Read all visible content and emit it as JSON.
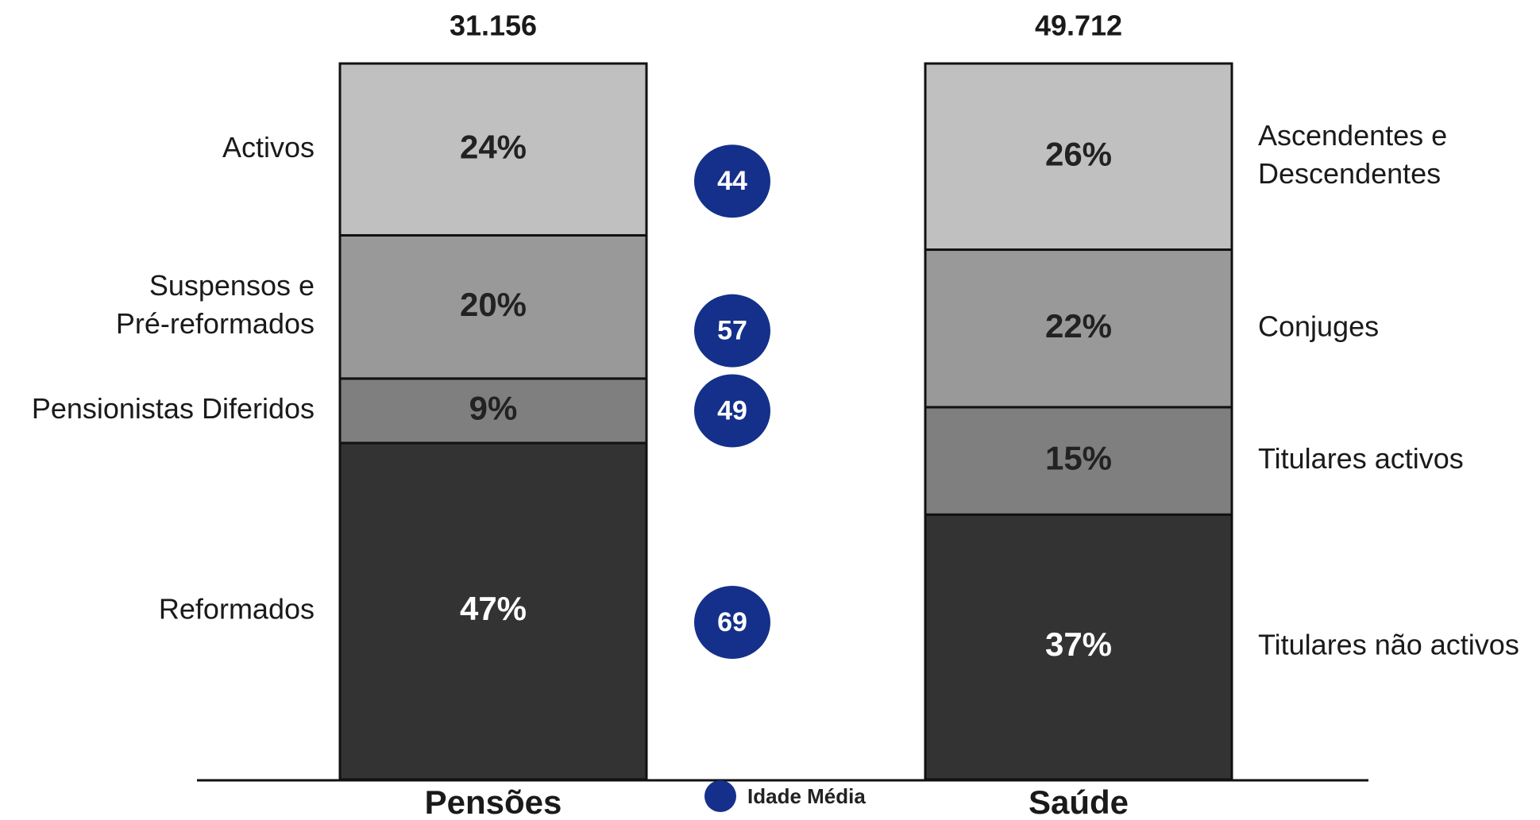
{
  "chart_data": {
    "type": "bar",
    "stacked": true,
    "percent": true,
    "categories": [
      "Pensões",
      "Saúde"
    ],
    "totals": [
      "31.156",
      "49.712"
    ],
    "stacks": [
      {
        "category": "Pensões",
        "segments": [
          {
            "label": "Reformados",
            "value": 47,
            "value_label": "47%",
            "color": "#333333",
            "text_color": "#ffffff"
          },
          {
            "label": "Pensionistas Diferidos",
            "value": 9,
            "value_label": "9%",
            "color": "#7f7f7f",
            "text_color": "#222222"
          },
          {
            "label": "Suspensos e Pré-reformados",
            "label_lines": [
              "Suspensos e",
              "Pré-reformados"
            ],
            "value": 20,
            "value_label": "20%",
            "color": "#999999",
            "text_color": "#222222"
          },
          {
            "label": "Activos",
            "value": 24,
            "value_label": "24%",
            "color": "#c0c0c0",
            "text_color": "#222222"
          }
        ]
      },
      {
        "category": "Saúde",
        "segments": [
          {
            "label": "Titulares não activos",
            "value": 37,
            "value_label": "37%",
            "color": "#333333",
            "text_color": "#ffffff"
          },
          {
            "label": "Titulares activos",
            "value": 15,
            "value_label": "15%",
            "color": "#7f7f7f",
            "text_color": "#222222"
          },
          {
            "label": "Conjuges",
            "value": 22,
            "value_label": "22%",
            "color": "#999999",
            "text_color": "#222222"
          },
          {
            "label": "Ascendentes e Descendentes",
            "label_lines": [
              "Ascendentes e",
              "Descendentes"
            ],
            "value": 26,
            "value_label": "26%",
            "color": "#c0c0c0",
            "text_color": "#222222"
          }
        ]
      }
    ],
    "idade_media": {
      "label": "Idade Média",
      "color": "#14308a",
      "values": [
        {
          "segment": "Reformados",
          "value": 69
        },
        {
          "segment": "Pensionistas Diferidos",
          "value": 49
        },
        {
          "segment": "Suspensos e Pré-reformados",
          "value": 57
        },
        {
          "segment": "Activos",
          "value": 44
        }
      ]
    },
    "ylim": [
      0,
      100
    ],
    "legend": "bottom-center",
    "grid": false
  }
}
